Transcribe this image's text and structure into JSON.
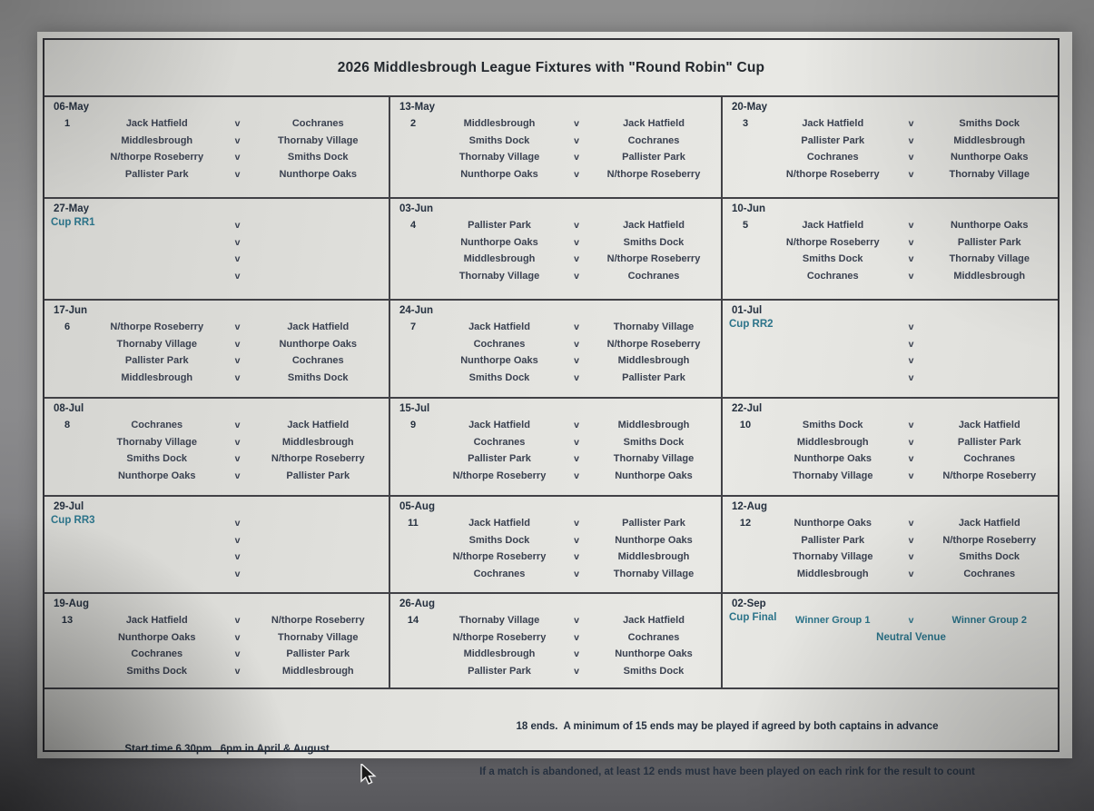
{
  "title": "2026 Middlesbrough League Fixtures with \"Round Robin\" Cup",
  "separator": "v",
  "colors": {
    "team_text": "#3a4150",
    "date_text": "#25303f",
    "cup_accent": "#2b7389",
    "paper": "#e2e2de",
    "grid_border": "#414146"
  },
  "blocks": [
    {
      "type": "league",
      "date": "06-May",
      "week": "1",
      "fixtures": [
        {
          "home": "Jack Hatfield",
          "away": "Cochranes"
        },
        {
          "home": "Middlesbrough",
          "away": "Thornaby Village"
        },
        {
          "home": "N/thorpe Roseberry",
          "away": "Smiths Dock"
        },
        {
          "home": "Pallister Park",
          "away": "Nunthorpe Oaks"
        }
      ]
    },
    {
      "type": "league",
      "date": "13-May",
      "week": "2",
      "fixtures": [
        {
          "home": "Middlesbrough",
          "away": "Jack Hatfield"
        },
        {
          "home": "Smiths Dock",
          "away": "Cochranes"
        },
        {
          "home": "Thornaby Village",
          "away": "Pallister Park"
        },
        {
          "home": "Nunthorpe Oaks",
          "away": "N/thorpe Roseberry"
        }
      ]
    },
    {
      "type": "league",
      "date": "20-May",
      "week": "3",
      "fixtures": [
        {
          "home": "Jack Hatfield",
          "away": "Smiths Dock"
        },
        {
          "home": "Pallister Park",
          "away": "Middlesbrough"
        },
        {
          "home": "Cochranes",
          "away": "Nunthorpe Oaks"
        },
        {
          "home": "N/thorpe Roseberry",
          "away": "Thornaby Village"
        }
      ]
    },
    {
      "type": "cup",
      "date": "27-May",
      "label": "Cup RR1",
      "blank_count": 4
    },
    {
      "type": "league",
      "date": "03-Jun",
      "week": "4",
      "fixtures": [
        {
          "home": "Pallister Park",
          "away": "Jack Hatfield"
        },
        {
          "home": "Nunthorpe Oaks",
          "away": "Smiths Dock"
        },
        {
          "home": "Middlesbrough",
          "away": "N/thorpe Roseberry"
        },
        {
          "home": "Thornaby Village",
          "away": "Cochranes"
        }
      ]
    },
    {
      "type": "league",
      "date": "10-Jun",
      "week": "5",
      "fixtures": [
        {
          "home": "Jack Hatfield",
          "away": "Nunthorpe Oaks"
        },
        {
          "home": "N/thorpe Roseberry",
          "away": "Pallister Park"
        },
        {
          "home": "Smiths Dock",
          "away": "Thornaby Village"
        },
        {
          "home": "Cochranes",
          "away": "Middlesbrough"
        }
      ]
    },
    {
      "type": "league",
      "date": "17-Jun",
      "week": "6",
      "fixtures": [
        {
          "home": "N/thorpe Roseberry",
          "away": "Jack Hatfield"
        },
        {
          "home": "Thornaby Village",
          "away": "Nunthorpe Oaks"
        },
        {
          "home": "Pallister Park",
          "away": "Cochranes"
        },
        {
          "home": "Middlesbrough",
          "away": "Smiths Dock"
        }
      ]
    },
    {
      "type": "league",
      "date": "24-Jun",
      "week": "7",
      "fixtures": [
        {
          "home": "Jack Hatfield",
          "away": "Thornaby Village"
        },
        {
          "home": "Cochranes",
          "away": "N/thorpe Roseberry"
        },
        {
          "home": "Nunthorpe Oaks",
          "away": "Middlesbrough"
        },
        {
          "home": "Smiths Dock",
          "away": "Pallister Park"
        }
      ]
    },
    {
      "type": "cup",
      "date": "01-Jul",
      "label": "Cup RR2",
      "blank_count": 4
    },
    {
      "type": "league",
      "date": "08-Jul",
      "week": "8",
      "fixtures": [
        {
          "home": "Cochranes",
          "away": "Jack Hatfield"
        },
        {
          "home": "Thornaby Village",
          "away": "Middlesbrough"
        },
        {
          "home": "Smiths Dock",
          "away": "N/thorpe Roseberry"
        },
        {
          "home": "Nunthorpe Oaks",
          "away": "Pallister Park"
        }
      ]
    },
    {
      "type": "league",
      "date": "15-Jul",
      "week": "9",
      "fixtures": [
        {
          "home": "Jack Hatfield",
          "away": "Middlesbrough"
        },
        {
          "home": "Cochranes",
          "away": "Smiths Dock"
        },
        {
          "home": "Pallister Park",
          "away": "Thornaby Village"
        },
        {
          "home": "N/thorpe Roseberry",
          "away": "Nunthorpe Oaks"
        }
      ]
    },
    {
      "type": "league",
      "date": "22-Jul",
      "week": "10",
      "fixtures": [
        {
          "home": "Smiths Dock",
          "away": "Jack Hatfield"
        },
        {
          "home": "Middlesbrough",
          "away": "Pallister Park"
        },
        {
          "home": "Nunthorpe Oaks",
          "away": "Cochranes"
        },
        {
          "home": "Thornaby Village",
          "away": "N/thorpe Roseberry"
        }
      ]
    },
    {
      "type": "cup",
      "date": "29-Jul",
      "label": "Cup RR3",
      "blank_count": 4
    },
    {
      "type": "league",
      "date": "05-Aug",
      "week": "11",
      "fixtures": [
        {
          "home": "Jack Hatfield",
          "away": "Pallister Park"
        },
        {
          "home": "Smiths Dock",
          "away": "Nunthorpe Oaks"
        },
        {
          "home": "N/thorpe Roseberry",
          "away": "Middlesbrough"
        },
        {
          "home": "Cochranes",
          "away": "Thornaby Village"
        }
      ]
    },
    {
      "type": "league",
      "date": "12-Aug",
      "week": "12",
      "fixtures": [
        {
          "home": "Nunthorpe Oaks",
          "away": "Jack Hatfield"
        },
        {
          "home": "Pallister Park",
          "away": "N/thorpe Roseberry"
        },
        {
          "home": "Thornaby Village",
          "away": "Smiths Dock"
        },
        {
          "home": "Middlesbrough",
          "away": "Cochranes"
        }
      ]
    },
    {
      "type": "league",
      "date": "19-Aug",
      "week": "13",
      "fixtures": [
        {
          "home": "Jack Hatfield",
          "away": "N/thorpe Roseberry"
        },
        {
          "home": "Nunthorpe Oaks",
          "away": "Thornaby Village"
        },
        {
          "home": "Cochranes",
          "away": "Pallister Park"
        },
        {
          "home": "Smiths Dock",
          "away": "Middlesbrough"
        }
      ]
    },
    {
      "type": "league",
      "date": "26-Aug",
      "week": "14",
      "fixtures": [
        {
          "home": "Thornaby Village",
          "away": "Jack Hatfield"
        },
        {
          "home": "N/thorpe Roseberry",
          "away": "Cochranes"
        },
        {
          "home": "Middlesbrough",
          "away": "Nunthorpe Oaks"
        },
        {
          "home": "Pallister Park",
          "away": "Smiths Dock"
        }
      ]
    },
    {
      "type": "final",
      "date": "02-Sep",
      "label": "Cup Final",
      "home": "Winner Group 1",
      "away": "Winner Group 2",
      "note": "Neutral Venue"
    }
  ],
  "footer": {
    "left": "Start time 6.30pm.  6pm in April & August",
    "line1": "18 ends.  A minimum of 15 ends may be played if agreed by both captains in advance",
    "line2": "If a match is abandoned, at least 12 ends must have been played on each rink for the result to count"
  }
}
